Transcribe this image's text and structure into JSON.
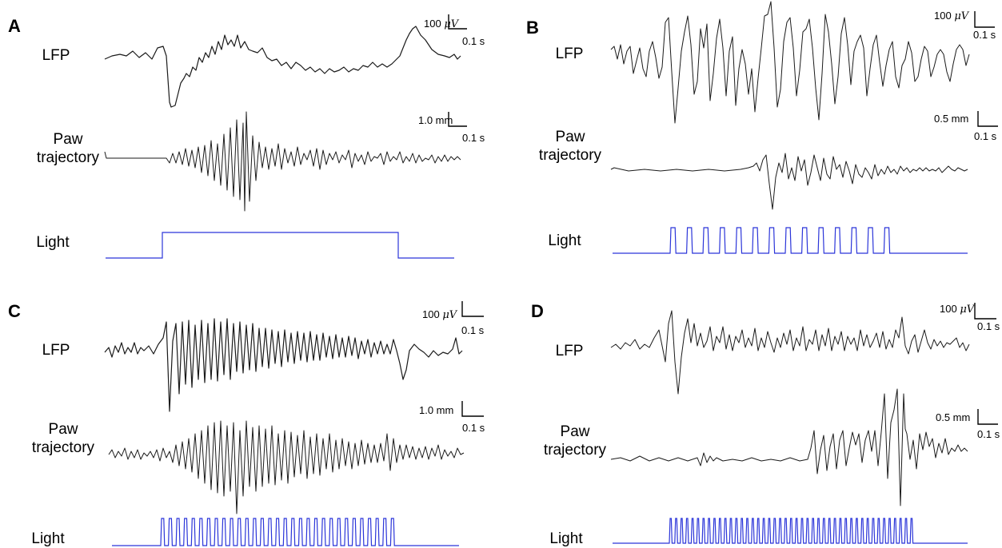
{
  "figure": {
    "panels": [
      {
        "letter": "A",
        "labels": {
          "lfp": "LFP",
          "paw_line1": "Paw",
          "paw_line2": "trajectory",
          "light": "Light"
        },
        "lfp_scale": {
          "amplitude_value": "100",
          "amplitude_unit": "V",
          "time": "0.1 s"
        },
        "paw_scale": {
          "amplitude": "1.0 mm",
          "time": "0.1 s"
        },
        "light_protocol": "continuous"
      },
      {
        "letter": "B",
        "labels": {
          "lfp": "LFP",
          "paw_line1": "Paw",
          "paw_line2": "trajectory",
          "light": "Light"
        },
        "lfp_scale": {
          "amplitude_value": "100",
          "amplitude_unit": "V",
          "time": "0.1 s"
        },
        "paw_scale": {
          "amplitude": "0.5 mm",
          "time": "0.1 s"
        },
        "light_protocol": "pulsed",
        "light_pulse_count": 14
      },
      {
        "letter": "C",
        "labels": {
          "lfp": "LFP",
          "paw_line1": "Paw",
          "paw_line2": "trajectory",
          "light": "Light"
        },
        "lfp_scale": {
          "amplitude_value": "100",
          "amplitude_unit": "V",
          "time": "0.1 s"
        },
        "paw_scale": {
          "amplitude": "1.0 mm",
          "time": "0.1 s"
        },
        "light_protocol": "pulsed",
        "light_pulse_count": 31
      },
      {
        "letter": "D",
        "labels": {
          "lfp": "LFP",
          "paw_line1": "Paw",
          "paw_line2": "trajectory",
          "light": "Light"
        },
        "lfp_scale": {
          "amplitude_value": "100",
          "amplitude_unit": "V",
          "time": "0.1 s"
        },
        "paw_scale": {
          "amplitude": "0.5 mm",
          "time": "0.1 s"
        },
        "light_protocol": "pulsed",
        "light_pulse_count": 45
      }
    ],
    "colors": {
      "trace": "#1a1a1a",
      "light": "#2b35d9",
      "scale_bar": "#000000"
    }
  }
}
